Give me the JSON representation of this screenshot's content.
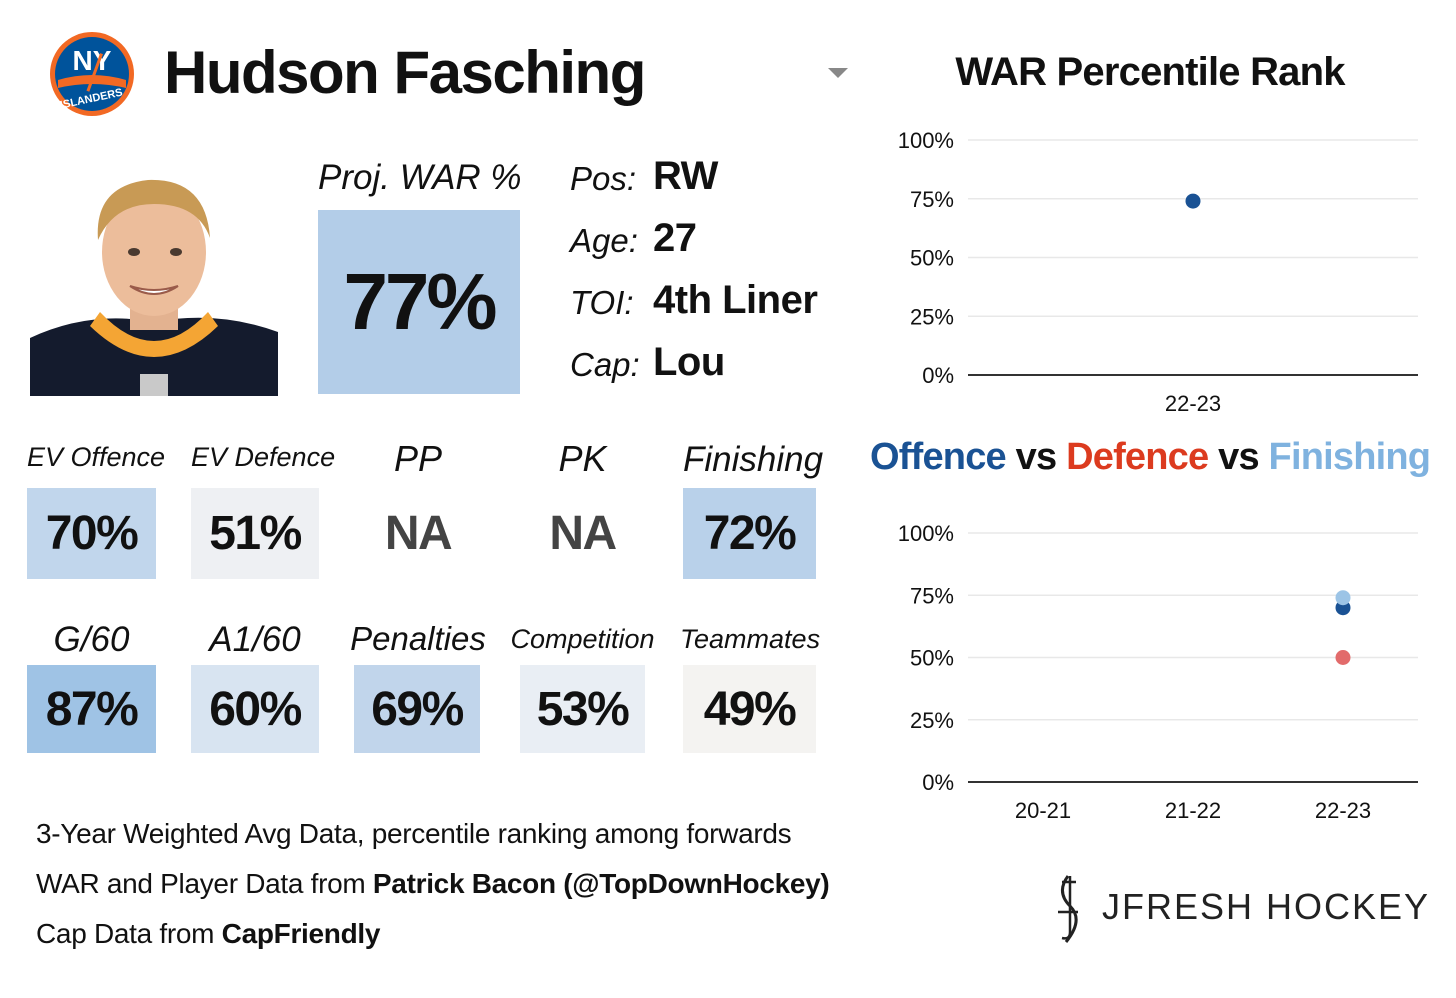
{
  "header": {
    "player_name": "Hudson Fasching",
    "logo_icon": "ny-islanders-logo",
    "logo_text": "NY ISLANDERS"
  },
  "headshot": {
    "icon": "player-headshot"
  },
  "proj_war": {
    "label": "Proj. WAR %",
    "value": "77%",
    "fraction": 0.77,
    "color": "#b3cde8"
  },
  "info": [
    {
      "label": "Pos:",
      "value": "RW"
    },
    {
      "label": "Age:",
      "value": "27"
    },
    {
      "label": "TOI:",
      "value": "4th Liner"
    },
    {
      "label": "Cap:",
      "value": "Lou"
    }
  ],
  "stats_row1": [
    {
      "label": "EV Offence",
      "value": "70%",
      "color": "#c1d6ec"
    },
    {
      "label": "EV Defence",
      "value": "51%",
      "color": "#eef0f3"
    },
    {
      "label": "PP",
      "value": "NA",
      "color": ""
    },
    {
      "label": "PK",
      "value": "NA",
      "color": ""
    },
    {
      "label": "Finishing",
      "value": "72%",
      "color": "#b9d1ea"
    }
  ],
  "stats_row2": [
    {
      "label": "G/60",
      "value": "87%",
      "color": "#9fc3e5"
    },
    {
      "label": "A1/60",
      "value": "60%",
      "color": "#d8e4f1"
    },
    {
      "label": "Penalties",
      "value": "69%",
      "color": "#c1d5eb"
    },
    {
      "label": "Competition",
      "value": "53%",
      "color": "#e9eef4"
    },
    {
      "label": "Teammates",
      "value": "49%",
      "color": "#f4f3f1"
    }
  ],
  "footnotes": {
    "line1": "3-Year Weighted Avg Data, percentile ranking among forwards",
    "line2_prefix": "WAR and Player Data from ",
    "line2_bold": "Patrick Bacon (@TopDownHockey)",
    "line3_prefix": "Cap Data from ",
    "line3_bold": "CapFriendly"
  },
  "brand": {
    "text": "JFRESH HOCKEY",
    "icon": "jfresh-hockey-logo"
  },
  "chart_data": [
    {
      "type": "scatter",
      "title": "WAR Percentile Rank",
      "categories": [
        "22-23"
      ],
      "ylim": [
        0,
        100
      ],
      "y_ticks": [
        "0%",
        "25%",
        "50%",
        "75%",
        "100%"
      ],
      "grid": true,
      "series": [
        {
          "values": [
            74
          ],
          "color": "#1a5294"
        }
      ]
    },
    {
      "type": "scatter",
      "title_parts": {
        "a": "Offence",
        "vs1": "vs",
        "b": "Defence",
        "vs2": "vs",
        "c": "Finishing"
      },
      "categories": [
        "20-21",
        "21-22",
        "22-23"
      ],
      "ylim": [
        0,
        100
      ],
      "y_ticks": [
        "0%",
        "25%",
        "50%",
        "75%",
        "100%"
      ],
      "grid": true,
      "series": [
        {
          "values": [
            null,
            null,
            70
          ],
          "color": "#1a5294"
        },
        {
          "values": [
            null,
            null,
            50
          ],
          "color": "#e26b6b"
        },
        {
          "values": [
            null,
            null,
            74
          ],
          "color": "#9cc4e6"
        }
      ]
    }
  ]
}
